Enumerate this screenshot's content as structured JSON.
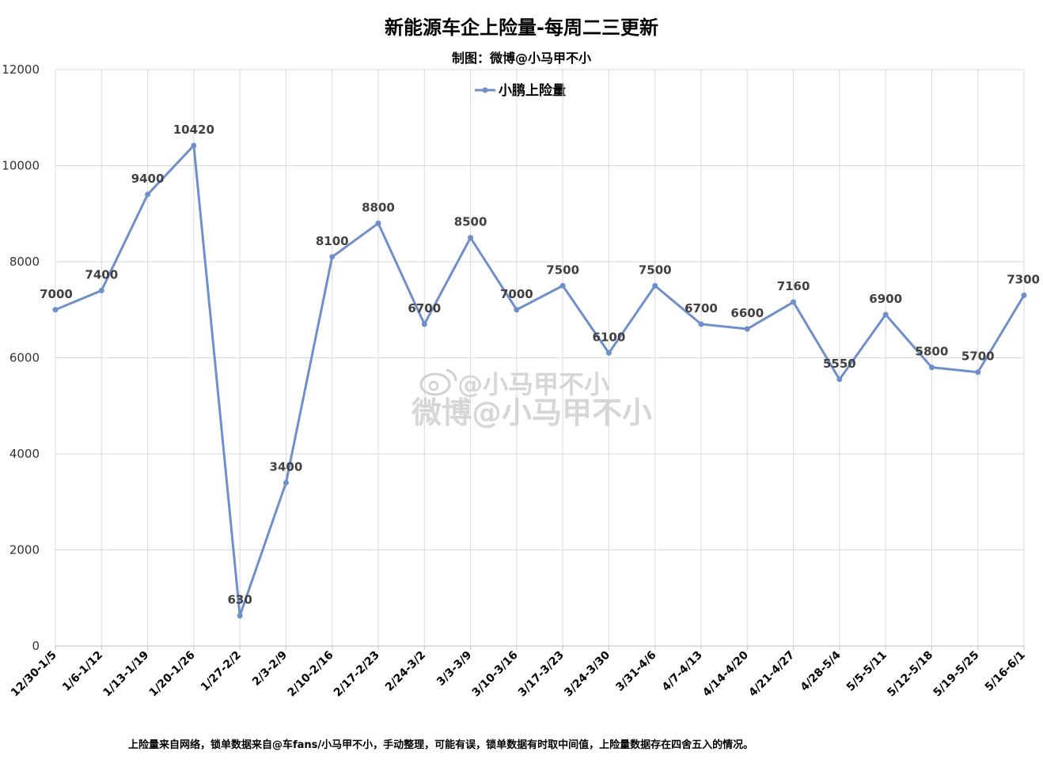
{
  "chart_data": {
    "type": "line",
    "title": "新能源车企上险量-每周二三更新",
    "subtitle": "制图：微博@小马甲不小",
    "categories": [
      "12/30-1/5",
      "1/6-1/12",
      "1/13-1/19",
      "1/20-1/26",
      "1/27-2/2",
      "2/3-2/9",
      "2/10-2/16",
      "2/17-2/23",
      "2/24-3/2",
      "3/3-3/9",
      "3/10-3/16",
      "3/17-3/23",
      "3/24-3/30",
      "3/31-4/6",
      "4/7-4/13",
      "4/14-4/20",
      "4/21-4/27",
      "4/28-5/4",
      "5/5-5/11",
      "5/12-5/18",
      "5/19-5/25",
      "5/16-6/1"
    ],
    "series": [
      {
        "name": "小鹏上险量",
        "values": [
          7000,
          7400,
          9400,
          10420,
          630,
          3400,
          8100,
          8800,
          6700,
          8500,
          7000,
          7500,
          6100,
          7500,
          6700,
          6600,
          7160,
          5550,
          6900,
          5800,
          5700,
          7300
        ],
        "color": "#6f8fcb"
      }
    ],
    "yticks": [
      0,
      2000,
      4000,
      6000,
      8000,
      10000,
      12000
    ],
    "ylim": [
      0,
      12000
    ],
    "grid": true,
    "legend": "top-center",
    "footnote": "上险量来自网络，锁单数据来自@车fans/小马甲不小，手动整理，可能有误，锁单数据有时取中间值，上险量数据存在四舍五入的情况。",
    "watermark": [
      "@小马甲不小",
      "微博@小马甲不小"
    ]
  }
}
